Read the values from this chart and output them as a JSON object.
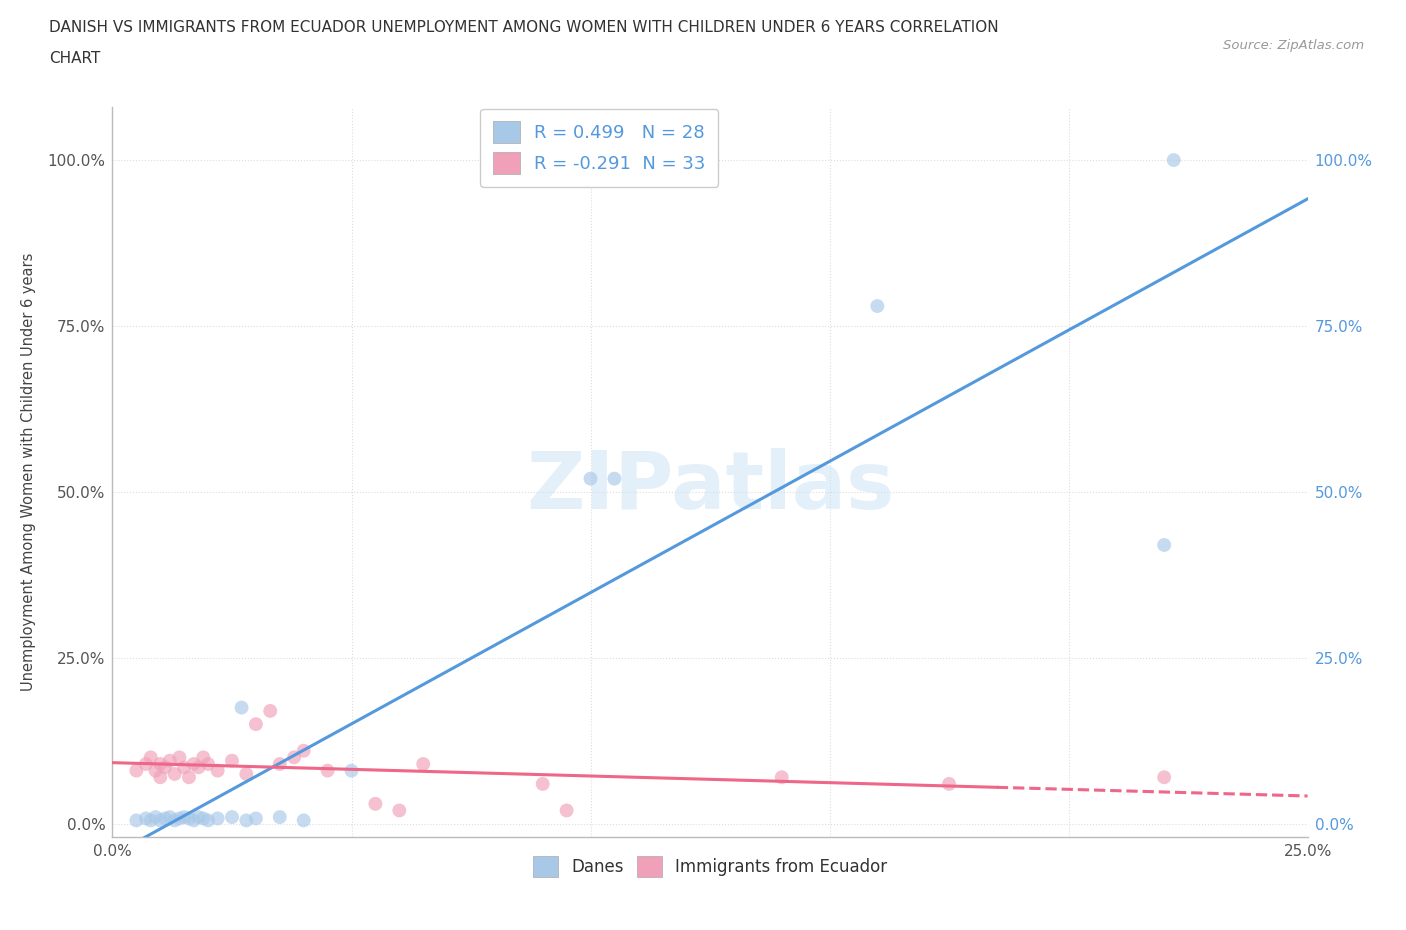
{
  "title_line1": "DANISH VS IMMIGRANTS FROM ECUADOR UNEMPLOYMENT AMONG WOMEN WITH CHILDREN UNDER 6 YEARS CORRELATION",
  "title_line2": "CHART",
  "source": "Source: ZipAtlas.com",
  "ylabel": "Unemployment Among Women with Children Under 6 years",
  "xlim": [
    0.0,
    0.25
  ],
  "ylim": [
    -0.02,
    1.08
  ],
  "xticks": [
    0.0,
    0.05,
    0.1,
    0.15,
    0.2,
    0.25
  ],
  "yticks": [
    0.0,
    0.25,
    0.5,
    0.75,
    1.0
  ],
  "ytick_labels_left": [
    "0.0%",
    "25.0%",
    "50.0%",
    "75.0%",
    "100.0%"
  ],
  "ytick_labels_right": [
    "0.0%",
    "25.0%",
    "50.0%",
    "75.0%",
    "100.0%"
  ],
  "xtick_labels": [
    "0.0%",
    "",
    "",
    "",
    "",
    "25.0%"
  ],
  "danes_color": "#a8c8e8",
  "ecuador_color": "#f0a0b8",
  "danes_line_color": "#5599dd",
  "ecuador_line_color": "#ee6688",
  "R_danes": 0.499,
  "N_danes": 28,
  "R_ecuador": -0.291,
  "N_ecuador": 33,
  "danes_x": [
    0.005,
    0.007,
    0.008,
    0.009,
    0.01,
    0.011,
    0.012,
    0.013,
    0.014,
    0.015,
    0.016,
    0.017,
    0.018,
    0.019,
    0.02,
    0.022,
    0.025,
    0.027,
    0.028,
    0.03,
    0.035,
    0.04,
    0.05,
    0.1,
    0.105,
    0.16,
    0.22,
    0.222
  ],
  "danes_y": [
    0.005,
    0.008,
    0.005,
    0.01,
    0.005,
    0.008,
    0.01,
    0.005,
    0.008,
    0.01,
    0.008,
    0.005,
    0.01,
    0.008,
    0.005,
    0.008,
    0.01,
    0.175,
    0.005,
    0.008,
    0.01,
    0.005,
    0.08,
    0.52,
    0.52,
    0.78,
    0.42,
    1.0
  ],
  "ecuador_x": [
    0.005,
    0.007,
    0.008,
    0.009,
    0.01,
    0.01,
    0.011,
    0.012,
    0.013,
    0.014,
    0.015,
    0.016,
    0.017,
    0.018,
    0.019,
    0.02,
    0.022,
    0.025,
    0.028,
    0.03,
    0.033,
    0.035,
    0.038,
    0.04,
    0.045,
    0.055,
    0.06,
    0.065,
    0.09,
    0.095,
    0.14,
    0.175,
    0.22
  ],
  "ecuador_y": [
    0.08,
    0.09,
    0.1,
    0.08,
    0.09,
    0.07,
    0.085,
    0.095,
    0.075,
    0.1,
    0.085,
    0.07,
    0.09,
    0.085,
    0.1,
    0.09,
    0.08,
    0.095,
    0.075,
    0.15,
    0.17,
    0.09,
    0.1,
    0.11,
    0.08,
    0.03,
    0.02,
    0.09,
    0.06,
    0.02,
    0.07,
    0.06,
    0.07
  ],
  "ecuador_line_solid_end": 0.185,
  "watermark_text": "ZIPatlas",
  "background_color": "#ffffff",
  "grid_color": "#dddddd",
  "legend_text_color": "#5599dd",
  "marker_size": 100,
  "marker_alpha": 0.65
}
